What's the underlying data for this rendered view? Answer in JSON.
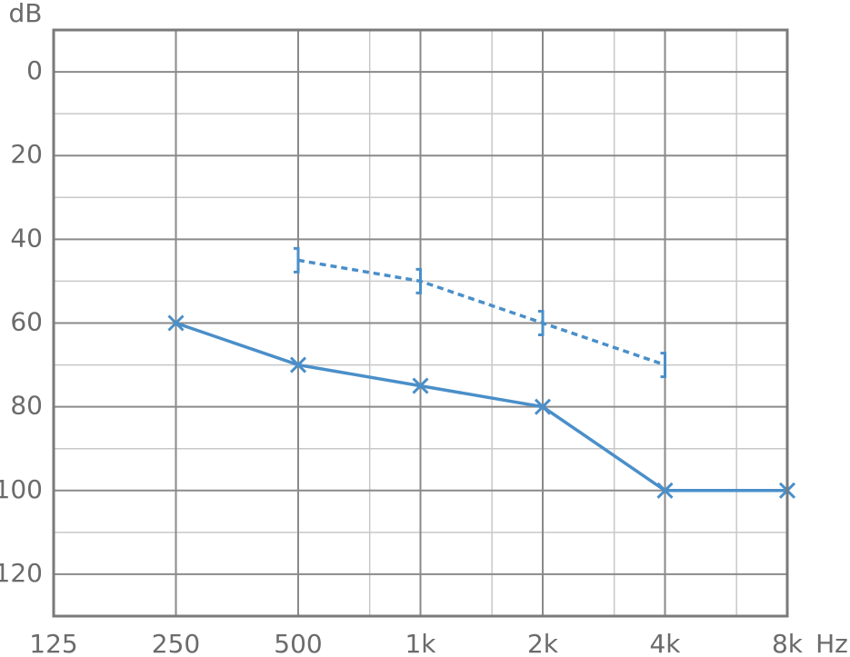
{
  "chart_data": {
    "type": "line",
    "y_label": "dB",
    "x_label": "Hz",
    "x_scale": "log",
    "y_inverted": true,
    "grid": true,
    "xlim": [
      125,
      8000
    ],
    "xticks": [
      125,
      250,
      500,
      {
        "value": 1000,
        "label": "1k"
      },
      {
        "value": 2000,
        "label": "2k"
      },
      {
        "value": 4000,
        "label": "4k"
      },
      {
        "value": 8000,
        "label": "8k"
      }
    ],
    "xminor_ticks": [
      750,
      1500,
      3000,
      6000
    ],
    "ylim": [
      -10,
      130
    ],
    "yticks": [
      0,
      20,
      40,
      60,
      80,
      100,
      120
    ],
    "yminor_ticks": [
      10,
      30,
      50,
      70,
      90,
      110
    ],
    "series": [
      {
        "color": "#4a8fc9",
        "marker": "x",
        "dashed": false,
        "x": [
          250,
          500,
          1000,
          2000,
          4000,
          8000
        ],
        "values": [
          60,
          70,
          75,
          80,
          100,
          100
        ]
      },
      {
        "color": "#4a8fc9",
        "marker": "bracket",
        "dashed": true,
        "x": [
          500,
          1000,
          2000,
          4000
        ],
        "values": [
          45,
          50,
          60,
          70
        ]
      }
    ]
  }
}
